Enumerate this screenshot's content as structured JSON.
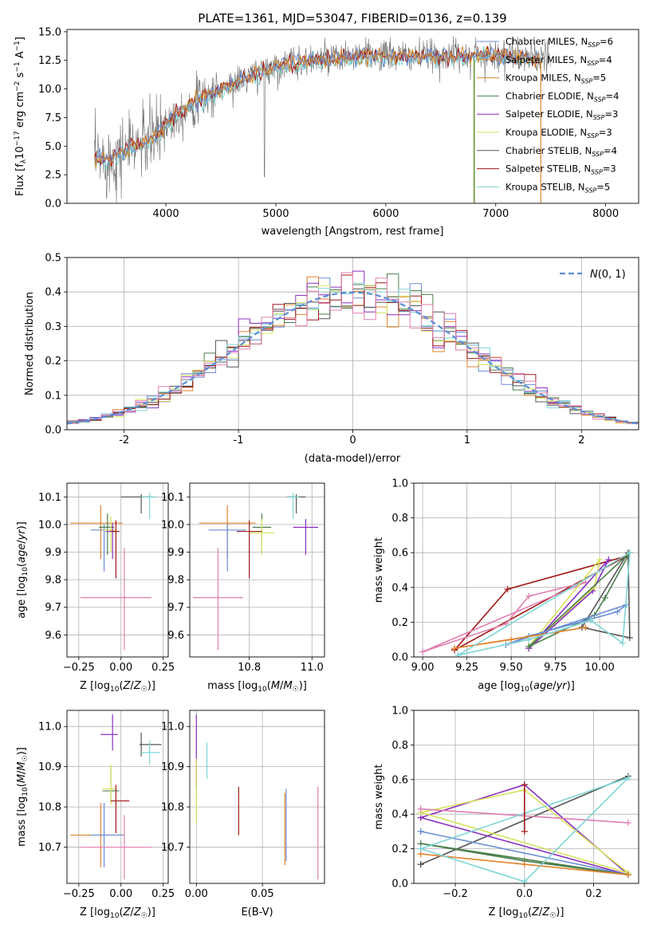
{
  "colors": {
    "Chabrier MILES": "#6b8ed6",
    "Salpeter MILES": "#e2832d",
    "Kroupa MILES": "#d0882e",
    "Chabrier ELODIE": "#4c7f4c",
    "Salpeter ELODIE": "#8a2fc0",
    "Kroupa ELODIE": "#d8e35c",
    "Chabrier STELIB": "#555555",
    "Salpeter STELIB": "#a01818",
    "Kroupa STELIB": "#7fd6d6",
    "pink": "#e07fb0",
    "normal_curve": "#5b8ed6",
    "grid": "#b0b0b0"
  },
  "chart_data": [
    {
      "id": "spectrum",
      "type": "line",
      "title": "PLATE=1361, MJD=53047, FIBERID=0136, z=0.139",
      "xlabel": "wavelength [Angstrom, rest frame]",
      "ylabel": "Flux [f_λ10^-17 erg cm^-2 s^-1 A^-1]",
      "xlim": [
        3100,
        8300
      ],
      "ylim": [
        0,
        15.2
      ],
      "xticks": [
        4000,
        5000,
        6000,
        7000,
        8000
      ],
      "yticks": [
        0.0,
        2.5,
        5.0,
        7.5,
        10.0,
        12.5,
        15.0
      ],
      "grid": false,
      "legend_position": "top-right",
      "legend": [
        {
          "label": "Chabrier MILES, N",
          "sub": "SSP",
          "suffix": "=6",
          "color": "#6b8ed6"
        },
        {
          "label": "Salpeter MILES, N",
          "sub": "SSP",
          "suffix": "=4",
          "color": "#e2832d"
        },
        {
          "label": "Kroupa MILES, N",
          "sub": "SSP",
          "suffix": "=5",
          "color": "#d0882e"
        },
        {
          "label": "Chabrier ELODIE, N",
          "sub": "SSP",
          "suffix": "=4",
          "color": "#4c7f4c"
        },
        {
          "label": "Salpeter ELODIE, N",
          "sub": "SSP",
          "suffix": "=3",
          "color": "#8a2fc0"
        },
        {
          "label": "Kroupa ELODIE, N",
          "sub": "SSP",
          "suffix": "=3",
          "color": "#d8e35c"
        },
        {
          "label": "Chabrier STELIB, N",
          "sub": "SSP",
          "suffix": "=4",
          "color": "#555555"
        },
        {
          "label": "Salpeter STELIB, N",
          "sub": "SSP",
          "suffix": "=3",
          "color": "#a01818"
        },
        {
          "label": "Kroupa STELIB, N",
          "sub": "SSP",
          "suffix": "=5",
          "color": "#7fd6d6"
        }
      ],
      "continuum": {
        "wavelength": [
          3350,
          3500,
          3700,
          3900,
          4000,
          4200,
          4500,
          4800,
          5000,
          5200,
          5500,
          5800,
          6000,
          6300,
          6600,
          7000,
          7300,
          7500
        ],
        "flux": [
          3.8,
          3.9,
          5.0,
          5.8,
          7.0,
          8.5,
          10.0,
          11.3,
          12.0,
          12.4,
          12.6,
          12.9,
          12.9,
          12.8,
          12.9,
          13.0,
          12.7,
          12.6
        ]
      }
    },
    {
      "id": "residuals",
      "type": "histogram",
      "xlabel": "(data-model)/error",
      "ylabel": "Normed distribution",
      "xlim": [
        -2.5,
        2.5
      ],
      "ylim": [
        0,
        0.5
      ],
      "xticks": [
        -2,
        -1,
        0,
        1,
        2
      ],
      "yticks": [
        0.0,
        0.1,
        0.2,
        0.3,
        0.4,
        0.5
      ],
      "grid": true,
      "legend_position": "top-right",
      "legend_label": "N(0, 1)",
      "bin_width": 0.1
    },
    {
      "id": "age_vs_Z",
      "type": "scatter",
      "xlabel": "Z [log10(Z/Z☉)]",
      "ylabel": "age [log10(age/yr)]",
      "xlim": [
        -0.32,
        0.28
      ],
      "ylim": [
        9.52,
        10.15
      ],
      "xticks": [
        -0.25,
        0.0,
        0.25
      ],
      "xtick_labels": [
        "−0.25",
        "0.00",
        "0.25"
      ],
      "yticks": [
        9.6,
        9.7,
        9.8,
        9.9,
        10.0,
        10.1
      ],
      "grid": true,
      "points": [
        {
          "x": -0.12,
          "y": 10.005,
          "xerr": [
            0.18,
            0.13
          ],
          "yerr": [
            0.13,
            0.065
          ],
          "color": "#e2832d"
        },
        {
          "x": -0.1,
          "y": 9.98,
          "xerr": [
            0.08,
            0.06
          ],
          "yerr": [
            0.15,
            0.02
          ],
          "color": "#6b8ed6"
        },
        {
          "x": -0.08,
          "y": 9.99,
          "xerr": [
            0.05,
            0.04
          ],
          "yerr": [
            0.1,
            0.05
          ],
          "color": "#4c7f4c"
        },
        {
          "x": -0.06,
          "y": 9.98,
          "xerr": [
            0.05,
            0.03
          ],
          "yerr": [
            0.08,
            0.05
          ],
          "color": "#d8e35c"
        },
        {
          "x": -0.05,
          "y": 9.975,
          "xerr": [
            0.04,
            0.04
          ],
          "yerr": [
            0.1,
            0.03
          ],
          "color": "#8a2fc0"
        },
        {
          "x": -0.03,
          "y": 9.975,
          "xerr": [
            0.03,
            0.02
          ],
          "yerr": [
            0.17,
            0.04
          ],
          "color": "#a01818"
        },
        {
          "x": 0.02,
          "y": 9.735,
          "xerr": [
            0.26,
            0.16
          ],
          "yerr": [
            0.19,
            0.18
          ],
          "color": "#e07fb0"
        },
        {
          "x": 0.12,
          "y": 10.1,
          "xerr": [
            0.12,
            0.07
          ],
          "yerr": [
            0.06,
            0.01
          ],
          "color": "#555555"
        },
        {
          "x": 0.17,
          "y": 10.1,
          "xerr": [
            0.05,
            0.04
          ],
          "yerr": [
            0.08,
            0.015
          ],
          "color": "#7fd6d6"
        }
      ]
    },
    {
      "id": "age_vs_mass",
      "type": "scatter",
      "xlabel": "mass [log10(M/M☉)]",
      "ylabel": "",
      "xlim": [
        10.61,
        11.04
      ],
      "ylim": [
        9.52,
        10.15
      ],
      "xticks": [
        10.8,
        11.0
      ],
      "xtick_labels": [
        "10.8",
        "11.0"
      ],
      "yticks": [
        9.6,
        9.7,
        9.8,
        9.9,
        10.0,
        10.1
      ],
      "grid": true,
      "points": [
        {
          "x": 10.73,
          "y": 10.005,
          "xerr": [
            0.09,
            0.09
          ],
          "yerr": [
            0.13,
            0.065
          ],
          "color": "#e2832d"
        },
        {
          "x": 10.73,
          "y": 9.98,
          "xerr": [
            0.06,
            0.06
          ],
          "yerr": [
            0.15,
            0.02
          ],
          "color": "#6b8ed6"
        },
        {
          "x": 10.84,
          "y": 9.99,
          "xerr": [
            0.03,
            0.03
          ],
          "yerr": [
            0.1,
            0.05
          ],
          "color": "#4c7f4c"
        },
        {
          "x": 10.84,
          "y": 9.97,
          "xerr": [
            0.04,
            0.04
          ],
          "yerr": [
            0.08,
            0.05
          ],
          "color": "#d8e35c"
        },
        {
          "x": 10.98,
          "y": 9.99,
          "xerr": [
            0.04,
            0.04
          ],
          "yerr": [
            0.1,
            0.03
          ],
          "color": "#8a2fc0"
        },
        {
          "x": 10.8,
          "y": 9.975,
          "xerr": [
            0.04,
            0.04
          ],
          "yerr": [
            0.17,
            0.04
          ],
          "color": "#a01818"
        },
        {
          "x": 10.7,
          "y": 9.735,
          "xerr": [
            0.08,
            0.08
          ],
          "yerr": [
            0.19,
            0.18
          ],
          "color": "#e07fb0"
        },
        {
          "x": 10.95,
          "y": 10.1,
          "xerr": [
            0.03,
            0.03
          ],
          "yerr": [
            0.06,
            0.01
          ],
          "color": "#555555"
        },
        {
          "x": 10.94,
          "y": 10.1,
          "xerr": [
            0.02,
            0.02
          ],
          "yerr": [
            0.08,
            0.015
          ],
          "color": "#7fd6d6"
        }
      ]
    },
    {
      "id": "mass_vs_Z",
      "type": "scatter",
      "xlabel": "Z [log10(Z/Z☉)]",
      "ylabel": "mass [log10(M/M☉)]",
      "xlim": [
        -0.32,
        0.28
      ],
      "ylim": [
        10.61,
        11.04
      ],
      "xticks": [
        -0.25,
        0.0,
        0.25
      ],
      "xtick_labels": [
        "−0.25",
        "0.00",
        "0.25"
      ],
      "yticks": [
        10.7,
        10.8,
        10.9,
        11.0
      ],
      "grid": true,
      "points": [
        {
          "x": -0.12,
          "y": 10.73,
          "xerr": [
            0.18,
            0.13
          ],
          "yerr": [
            0.08,
            0.08
          ],
          "color": "#e2832d"
        },
        {
          "x": -0.1,
          "y": 10.73,
          "xerr": [
            0.08,
            0.12
          ],
          "yerr": [
            0.08,
            0.08
          ],
          "color": "#6b8ed6"
        },
        {
          "x": -0.06,
          "y": 10.84,
          "xerr": [
            0.05,
            0.05
          ],
          "yerr": [
            0.03,
            0.06
          ],
          "color": "#4c7f4c"
        },
        {
          "x": -0.06,
          "y": 10.845,
          "xerr": [
            0.05,
            0.03
          ],
          "yerr": [
            0.04,
            0.06
          ],
          "color": "#d8e35c"
        },
        {
          "x": -0.05,
          "y": 10.98,
          "xerr": [
            0.07,
            0.03
          ],
          "yerr": [
            0.04,
            0.05
          ],
          "color": "#8a2fc0"
        },
        {
          "x": -0.03,
          "y": 10.815,
          "xerr": [
            0.03,
            0.08
          ],
          "yerr": [
            0.08,
            0.04
          ],
          "color": "#a01818"
        },
        {
          "x": 0.02,
          "y": 10.7,
          "xerr": [
            0.26,
            0.16
          ],
          "yerr": [
            0.08,
            0.08
          ],
          "color": "#e07fb0"
        },
        {
          "x": 0.12,
          "y": 10.955,
          "xerr": [
            0.01,
            0.12
          ],
          "yerr": [
            0.03,
            0.03
          ],
          "color": "#555555"
        },
        {
          "x": 0.17,
          "y": 10.935,
          "xerr": [
            0.05,
            0.06
          ],
          "yerr": [
            0.03,
            0.03
          ],
          "color": "#7fd6d6"
        }
      ]
    },
    {
      "id": "mass_vs_ebv",
      "type": "scatter",
      "xlabel": "E(B-V)",
      "ylabel": "",
      "xlim": [
        -0.005,
        0.097
      ],
      "ylim": [
        10.61,
        11.04
      ],
      "xticks": [
        0.0,
        0.05
      ],
      "xtick_labels": [
        "0.00",
        "0.05"
      ],
      "yticks": [
        10.7,
        10.8,
        10.9,
        11.0
      ],
      "grid": true,
      "points": [
        {
          "x": 0.0,
          "y": 10.93,
          "yerr": [
            0.08,
            0.1
          ],
          "color": "#8a2fc0"
        },
        {
          "x": 0.0,
          "y": 10.84,
          "yerr": [
            0.08,
            0.08
          ],
          "color": "#d8e35c"
        },
        {
          "x": 0.008,
          "y": 10.92,
          "yerr": [
            0.05,
            0.04
          ],
          "color": "#7fd6d6"
        },
        {
          "x": 0.032,
          "y": 10.79,
          "yerr": [
            0.06,
            0.06
          ],
          "color": "#a01818"
        },
        {
          "x": 0.067,
          "y": 10.745,
          "yerr": [
            0.09,
            0.09
          ],
          "color": "#e2832d"
        },
        {
          "x": 0.068,
          "y": 10.755,
          "yerr": [
            0.09,
            0.09
          ],
          "color": "#6b8ed6"
        },
        {
          "x": 0.092,
          "y": 10.735,
          "yerr": [
            0.115,
            0.115
          ],
          "color": "#e07fb0"
        }
      ]
    },
    {
      "id": "weight_vs_age",
      "type": "line",
      "xlabel": "age [log10(age/yr)]",
      "ylabel": "mass weight",
      "xlim": [
        8.95,
        10.22
      ],
      "ylim": [
        0,
        1.0
      ],
      "xticks": [
        9.0,
        9.25,
        9.5,
        9.75,
        10.0
      ],
      "xtick_labels": [
        "9.00",
        "9.25",
        "9.50",
        "9.75",
        "10.00"
      ],
      "yticks": [
        0.0,
        0.2,
        0.4,
        0.6,
        0.8,
        1.0
      ],
      "grid": true,
      "series": [
        {
          "color": "#a01818",
          "x": [
            9.18,
            9.48,
            10.15,
            9.18
          ],
          "y": [
            0.04,
            0.39,
            0.58,
            0.04
          ]
        },
        {
          "color": "#e07fb0",
          "x": [
            9.0,
            9.47,
            9.6,
            9.92,
            9.0
          ],
          "y": [
            0.03,
            0.19,
            0.35,
            0.43,
            0.03
          ]
        },
        {
          "color": "#8a2fc0",
          "x": [
            9.6,
            9.96,
            10.05,
            9.6
          ],
          "y": [
            0.05,
            0.38,
            0.56,
            0.05
          ]
        },
        {
          "color": "#d8e35c",
          "x": [
            9.6,
            9.97,
            10.0,
            9.6
          ],
          "y": [
            0.06,
            0.4,
            0.56,
            0.06
          ]
        },
        {
          "color": "#555555",
          "x": [
            9.9,
            10.16,
            10.17,
            9.9
          ],
          "y": [
            0.17,
            0.6,
            0.11,
            0.17
          ]
        },
        {
          "color": "#4c7f4c",
          "x": [
            9.6,
            9.97,
            10.03,
            10.17,
            9.6
          ],
          "y": [
            0.06,
            0.24,
            0.34,
            0.6,
            0.06
          ]
        },
        {
          "color": "#6b8ed6",
          "x": [
            9.47,
            9.6,
            10.1,
            10.15,
            9.47
          ],
          "y": [
            0.07,
            0.12,
            0.26,
            0.3,
            0.07
          ]
        },
        {
          "color": "#e2832d",
          "x": [
            9.18,
            9.5,
            9.92,
            9.18
          ],
          "y": [
            0.05,
            0.1,
            0.17,
            0.05
          ]
        },
        {
          "color": "#7fd6d6",
          "x": [
            9.2,
            9.6,
            9.95,
            10.13,
            10.17,
            9.2
          ],
          "y": [
            0.01,
            0.1,
            0.21,
            0.08,
            0.6,
            0.01
          ]
        }
      ]
    },
    {
      "id": "weight_vs_Z",
      "type": "line",
      "xlabel": "Z [log10(Z/Z☉)]",
      "ylabel": "mass weight",
      "xlim": [
        -0.32,
        0.33
      ],
      "ylim": [
        0,
        1.0
      ],
      "xticks": [
        -0.2,
        0.0,
        0.2
      ],
      "xtick_labels": [
        "−0.2",
        "0.0",
        "0.2"
      ],
      "yticks": [
        0.0,
        0.2,
        0.4,
        0.6,
        0.8,
        1.0
      ],
      "grid": true,
      "series": [
        {
          "color": "#555555",
          "x": [
            -0.3,
            0.3,
            -0.3
          ],
          "y": [
            0.11,
            0.62,
            0.11
          ]
        },
        {
          "color": "#8a2fc0",
          "x": [
            -0.3,
            0.0,
            0.3,
            -0.3
          ],
          "y": [
            0.38,
            0.57,
            0.05,
            0.38
          ]
        },
        {
          "color": "#d8e35c",
          "x": [
            -0.3,
            0.0,
            0.3,
            -0.3
          ],
          "y": [
            0.41,
            0.54,
            0.06,
            0.41
          ]
        },
        {
          "color": "#e07fb0",
          "x": [
            -0.3,
            0.3,
            -0.3
          ],
          "y": [
            0.43,
            0.35,
            0.43
          ]
        },
        {
          "color": "#6b8ed6",
          "x": [
            -0.3,
            0.3,
            -0.3
          ],
          "y": [
            0.3,
            0.05,
            0.3
          ]
        },
        {
          "color": "#4c7f4c",
          "x": [
            -0.3,
            0.0,
            0.3,
            -0.3
          ],
          "y": [
            0.23,
            0.13,
            0.05,
            0.23
          ]
        },
        {
          "color": "#e2832d",
          "x": [
            -0.3,
            0.0,
            0.3,
            -0.3
          ],
          "y": [
            0.17,
            0.11,
            0.05,
            0.17
          ]
        },
        {
          "color": "#7fd6d6",
          "x": [
            -0.3,
            0.0,
            0.3,
            -0.3
          ],
          "y": [
            0.2,
            0.01,
            0.61,
            0.2
          ]
        },
        {
          "color": "#a01818",
          "x": [
            0.0,
            0.0
          ],
          "y": [
            0.3,
            0.57
          ]
        }
      ]
    }
  ]
}
